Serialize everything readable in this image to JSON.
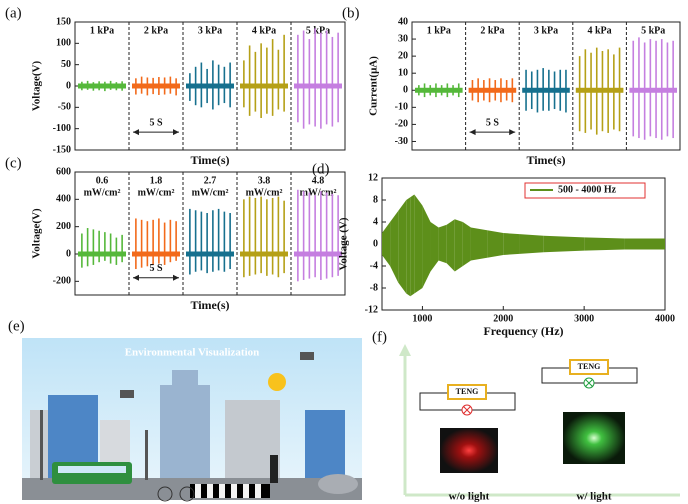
{
  "chart_data": [
    {
      "type": "pulse",
      "panel": "(a)",
      "ylabel": "Voltage(V)",
      "xlabel": "Time(s)",
      "annotation": "5 S",
      "ylim": [
        -150,
        150
      ],
      "yticks": [
        -150,
        -100,
        -50,
        0,
        50,
        100,
        150
      ],
      "series": [
        {
          "name": "1 kPa",
          "color": "#55b83a",
          "values": [
            10,
            12,
            9,
            11,
            10,
            12,
            9,
            11
          ],
          "lows": [
            -10,
            -9,
            -11,
            -10,
            -12,
            -9,
            -10,
            -11
          ]
        },
        {
          "name": "2 kPa",
          "color": "#f26a1b",
          "values": [
            18,
            22,
            20,
            19,
            21,
            20,
            22,
            18
          ],
          "lows": [
            -20,
            -18,
            -22,
            -19,
            -21,
            -20,
            -18,
            -22
          ]
        },
        {
          "name": "3 kPa",
          "color": "#16708e",
          "values": [
            30,
            45,
            55,
            40,
            60,
            50,
            45,
            55
          ],
          "lows": [
            -35,
            -45,
            -50,
            -40,
            -55,
            -45,
            -40,
            -50
          ]
        },
        {
          "name": "4 kPa",
          "color": "#b5a017",
          "values": [
            60,
            95,
            80,
            100,
            90,
            110,
            85,
            120
          ],
          "lows": [
            -50,
            -70,
            -60,
            -75,
            -65,
            -70,
            -55,
            -60
          ]
        },
        {
          "name": "5 kPa",
          "color": "#c57fe0",
          "values": [
            120,
            130,
            110,
            135,
            125,
            130,
            115,
            125
          ],
          "lows": [
            -85,
            -100,
            -90,
            -95,
            -100,
            -90,
            -95,
            -85
          ]
        }
      ]
    },
    {
      "type": "pulse",
      "panel": "(b)",
      "ylabel": "Current(μA)",
      "xlabel": "Time(s)",
      "annotation": "5 S",
      "ylim": [
        -35,
        40
      ],
      "yticks": [
        -30,
        -20,
        -10,
        0,
        10,
        20,
        30,
        40
      ],
      "series": [
        {
          "name": "1 kPa",
          "color": "#55b83a",
          "values": [
            3,
            4,
            3,
            4,
            3,
            4,
            3,
            4
          ],
          "lows": [
            -3,
            -4,
            -3,
            -4,
            -3,
            -4,
            -3,
            -4
          ]
        },
        {
          "name": "2 kPa",
          "color": "#f26a1b",
          "values": [
            6,
            7,
            6,
            7,
            6,
            7,
            6,
            7
          ],
          "lows": [
            -6,
            -7,
            -6,
            -7,
            -6,
            -7,
            -6,
            -7
          ]
        },
        {
          "name": "3 kPa",
          "color": "#16708e",
          "values": [
            12,
            11,
            12,
            13,
            12,
            11,
            12,
            12
          ],
          "lows": [
            -12,
            -11,
            -13,
            -12,
            -12,
            -11,
            -12,
            -13
          ]
        },
        {
          "name": "4 kPa",
          "color": "#b5a017",
          "values": [
            20,
            24,
            22,
            25,
            23,
            24,
            21,
            25
          ],
          "lows": [
            -24,
            -25,
            -23,
            -26,
            -24,
            -25,
            -23,
            -24
          ]
        },
        {
          "name": "5 kPa",
          "color": "#c57fe0",
          "values": [
            29,
            31,
            28,
            30,
            29,
            30,
            28,
            29
          ],
          "lows": [
            -27,
            -28,
            -29,
            -27,
            -28,
            -29,
            -27,
            -28
          ]
        }
      ]
    },
    {
      "type": "pulse",
      "panel": "(c)",
      "ylabel": "Voltage(V)",
      "xlabel": "Time(s)",
      "annotation": "5 S",
      "ylim": [
        -300,
        600
      ],
      "yticks": [
        -200,
        0,
        200,
        400,
        600
      ],
      "series": [
        {
          "name": "0.6",
          "unit": "mW/cm²",
          "color": "#55b83a",
          "values": [
            150,
            190,
            180,
            170,
            160,
            150,
            120,
            140
          ],
          "lows": [
            -100,
            -90,
            -80,
            -60,
            -50,
            -70,
            -80,
            -60
          ]
        },
        {
          "name": "1.8",
          "unit": "mW/cm²",
          "color": "#f26a1b",
          "values": [
            260,
            250,
            240,
            250,
            260,
            230,
            250,
            240
          ],
          "lows": [
            -110,
            -100,
            -90,
            -80,
            -70,
            -80,
            -60,
            -50
          ]
        },
        {
          "name": "2.7",
          "unit": "mW/cm²",
          "color": "#16708e",
          "values": [
            330,
            320,
            310,
            300,
            320,
            330,
            310,
            300
          ],
          "lows": [
            -150,
            -130,
            -120,
            -140,
            -130,
            -120,
            -130,
            -110
          ]
        },
        {
          "name": "3.8",
          "unit": "mW/cm²",
          "color": "#b5a017",
          "values": [
            400,
            420,
            410,
            420,
            400,
            410,
            420,
            390
          ],
          "lows": [
            -170,
            -160,
            -150,
            -140,
            -160,
            -150,
            -170,
            -140
          ]
        },
        {
          "name": "4.8",
          "unit": "mW/cm²",
          "color": "#c57fe0",
          "values": [
            470,
            460,
            450,
            430,
            460,
            450,
            440,
            430
          ],
          "lows": [
            -200,
            -190,
            -180,
            -170,
            -190,
            -180,
            -170,
            -160
          ]
        }
      ]
    },
    {
      "type": "spectrum",
      "panel": "(d)",
      "ylabel": "Voltage (V)",
      "xlabel": "Frequency (Hz)",
      "xlim": [
        500,
        4000
      ],
      "xticks": [
        1000,
        2000,
        3000,
        4000
      ],
      "ylim": [
        -12,
        12
      ],
      "yticks": [
        -12,
        -8,
        -4,
        0,
        4,
        8,
        12
      ],
      "legend": "upper right",
      "legend_border": "#e03030",
      "x": [
        500,
        600,
        700,
        800,
        850,
        900,
        1000,
        1100,
        1200,
        1300,
        1400,
        1500,
        1600,
        1800,
        2000,
        2200,
        2500,
        3000,
        3500,
        4000
      ],
      "series": [
        {
          "name": "500 - 4000 Hz",
          "color": "#5d8f1a",
          "values": [
            2,
            4,
            6,
            8,
            8.5,
            9,
            7,
            4,
            3,
            3.5,
            4.5,
            4,
            3,
            2.5,
            2,
            1.8,
            1.5,
            1.2,
            1,
            1
          ],
          "lows": [
            -2,
            -4,
            -7,
            -9,
            -9.5,
            -9,
            -8,
            -5,
            -3,
            -3.5,
            -5,
            -4,
            -3,
            -2.5,
            -2,
            -1.8,
            -1.5,
            -1.2,
            -1,
            -1
          ]
        }
      ]
    }
  ],
  "illustration_e": {
    "panel": "(e)",
    "title": "Environmental Visualization"
  },
  "illustration_f": {
    "panel": "(f)",
    "labels": [
      "TENG",
      "TENG"
    ],
    "captions": [
      "w/o light",
      "w/ light"
    ]
  }
}
